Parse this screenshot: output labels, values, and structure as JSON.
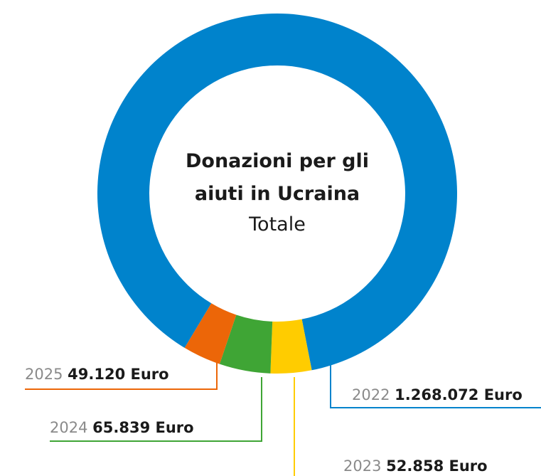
{
  "chart_data": {
    "type": "pie",
    "title": "Donazioni per gli aiuti in Ucraina",
    "subtitle": "Totale",
    "categories": [
      "2022",
      "2023",
      "2024",
      "2025"
    ],
    "values": [
      1268072,
      52858,
      65839,
      49120
    ],
    "value_labels": [
      "1.268.072 Euro",
      "52.858 Euro",
      "65.839 Euro",
      "49.120 Euro"
    ],
    "colors": [
      "#0083cc",
      "#ffcc00",
      "#3fa535",
      "#ec6608"
    ]
  }
}
